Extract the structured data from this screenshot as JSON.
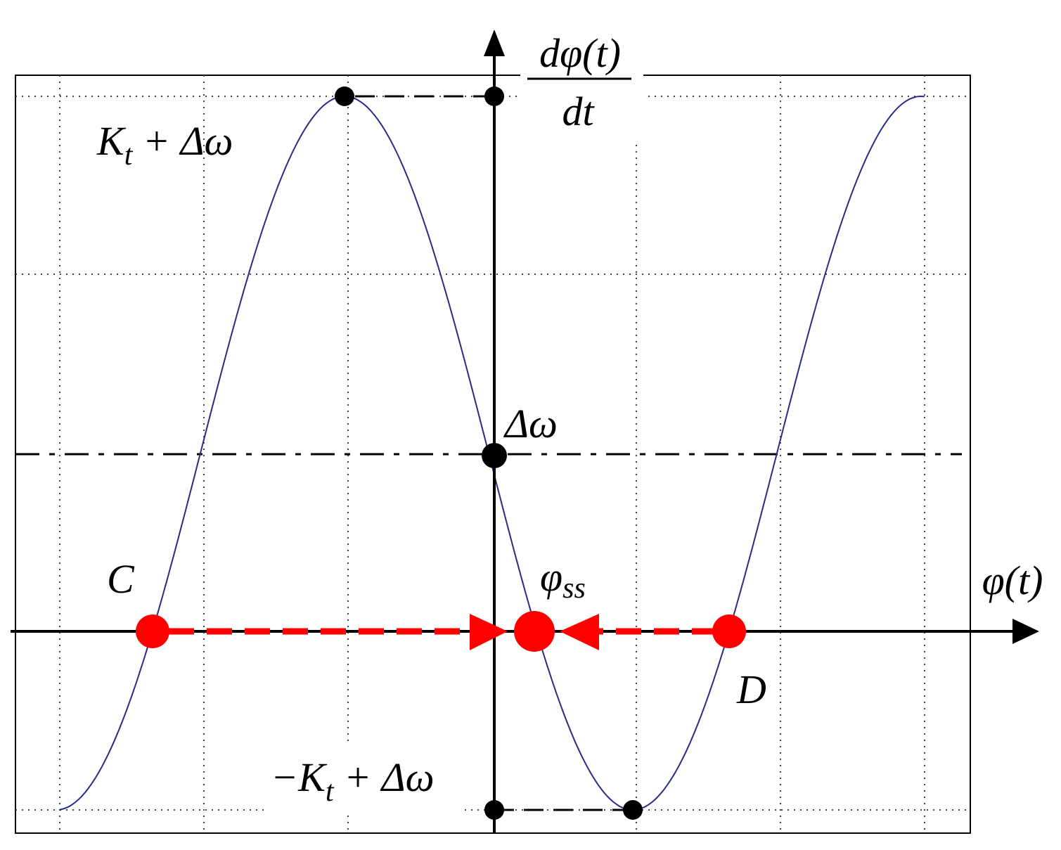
{
  "y_axis_label": {
    "numerator": "dφ(t)",
    "denominator": "dt"
  },
  "x_axis_label": "φ(t)",
  "max_label": {
    "symbol": "K",
    "subscript": "t",
    "rest": " + Δω"
  },
  "offset_label": "Δω",
  "min_label": {
    "symbol": "−K",
    "subscript": "t",
    "rest": " + Δω"
  },
  "point_c": "C",
  "point_d": "D",
  "steady_state": {
    "symbol": "φ",
    "subscript": "ss"
  }
}
